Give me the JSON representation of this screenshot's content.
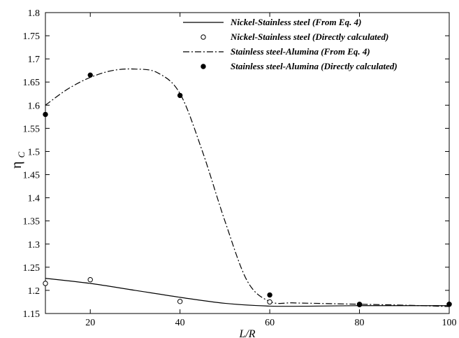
{
  "chart_data": {
    "type": "line",
    "xlabel": "L/R",
    "ylabel": "η",
    "ylabel_sub": "C",
    "xlim": [
      10,
      100
    ],
    "ylim": [
      1.15,
      1.8
    ],
    "x_ticks": [
      20,
      40,
      60,
      80,
      100
    ],
    "x_tick_labels": [
      "20",
      "40",
      "60",
      "80",
      "100"
    ],
    "y_ticks": [
      1.15,
      1.2,
      1.25,
      1.3,
      1.35,
      1.4,
      1.45,
      1.5,
      1.55,
      1.6,
      1.65,
      1.7,
      1.75,
      1.8
    ],
    "y_tick_labels": [
      "1.15",
      "1.2",
      "1.25",
      "1.3",
      "1.35",
      "1.4",
      "1.45",
      "1.5",
      "1.55",
      "1.6",
      "1.65",
      "1.7",
      "1.75",
      "1.8"
    ],
    "grid": false,
    "legend_position": "top-right",
    "series": [
      {
        "name": "Nickel-Stainless steel (From Eq. 4)",
        "style": "solid-line",
        "color": "#000000",
        "x": [
          10,
          20,
          30,
          40,
          50,
          60,
          70,
          80,
          90,
          100
        ],
        "y": [
          1.226,
          1.215,
          1.2,
          1.185,
          1.172,
          1.166,
          1.166,
          1.167,
          1.167,
          1.167
        ]
      },
      {
        "name": "Nickel-Stainless steel (Directly calculated)",
        "style": "open-circle",
        "color": "#000000",
        "x": [
          10,
          20,
          40,
          60,
          80,
          100
        ],
        "y": [
          1.215,
          1.223,
          1.176,
          1.175,
          1.169,
          1.17
        ]
      },
      {
        "name": "Stainless steel-Alumina (From Eq. 4)",
        "style": "dash-dot-line",
        "color": "#000000",
        "x": [
          10,
          15,
          20,
          25,
          30,
          35,
          40,
          45,
          50,
          55,
          60,
          65,
          70,
          80,
          90,
          100
        ],
        "y": [
          1.6,
          1.635,
          1.66,
          1.675,
          1.678,
          1.67,
          1.625,
          1.5,
          1.35,
          1.22,
          1.176,
          1.173,
          1.172,
          1.17,
          1.168,
          1.165
        ]
      },
      {
        "name": "Stainless steel-Alumina (Directly calculated)",
        "style": "filled-circle",
        "color": "#000000",
        "x": [
          10,
          20,
          40,
          60,
          80,
          100
        ],
        "y": [
          1.58,
          1.665,
          1.621,
          1.19,
          1.17,
          1.17
        ]
      }
    ]
  }
}
